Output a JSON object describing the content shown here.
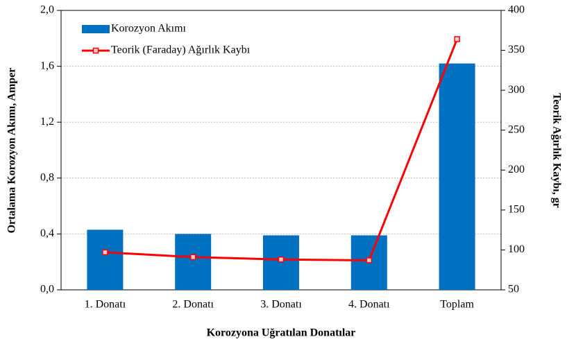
{
  "chart_data": {
    "type": "bar",
    "xlabel": "Korozyona Uğratılan Donatılar",
    "ylabel": "Ortalama Korozyon Akımı, Amper",
    "y2label": "Teorik Ağırlık Kaybı, gr",
    "categories": [
      "1. Donatı",
      "2. Donatı",
      "3. Donatı",
      "4. Donatı",
      "Toplam"
    ],
    "series": [
      {
        "name": "Korozyon Akımı",
        "color": "#0070c0",
        "type": "bar",
        "values": [
          0.43,
          0.4,
          0.39,
          0.39,
          1.62
        ]
      },
      {
        "name": "Teorik (Faraday) Ağırlık Kaybı",
        "color": "#ff0000",
        "type": "line",
        "axis": "y2",
        "values": [
          97,
          91,
          88,
          87,
          364
        ]
      }
    ],
    "ylim": [
      0,
      2.0
    ],
    "yticks": [
      {
        "value": 0,
        "label": "0,0"
      },
      {
        "value": 0.4,
        "label": "0,4"
      },
      {
        "value": 0.8,
        "label": "0,8"
      },
      {
        "value": 1.2,
        "label": "1,2"
      },
      {
        "value": 1.6,
        "label": "1,6"
      },
      {
        "value": 2.0,
        "label": "2,0"
      }
    ],
    "y2lim": [
      50,
      400
    ],
    "y2ticks": [
      50,
      100,
      150,
      200,
      250,
      300,
      350,
      400
    ],
    "grid": true,
    "legend": "upper left"
  }
}
